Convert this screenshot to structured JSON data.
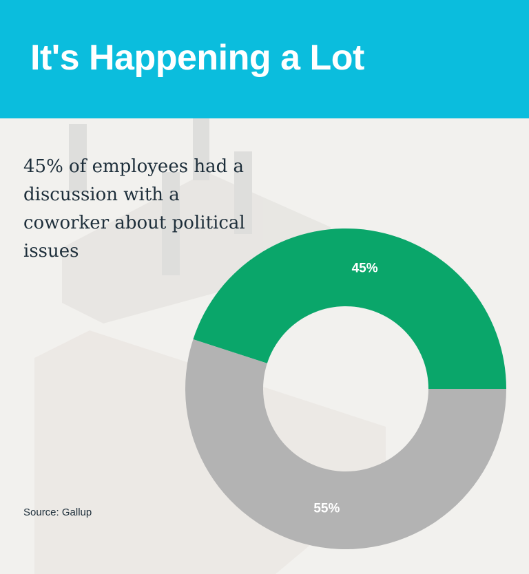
{
  "title": "It's Happening a Lot",
  "subtitle": "45% of employees had a discussion with a coworker about political issues",
  "source": "Source: Gallup",
  "chart_data": {
    "type": "donut",
    "values": [
      45,
      55
    ],
    "value_labels": [
      "45%",
      "55%"
    ],
    "colors": [
      "#0aa66a",
      "#b3b3b3"
    ]
  }
}
